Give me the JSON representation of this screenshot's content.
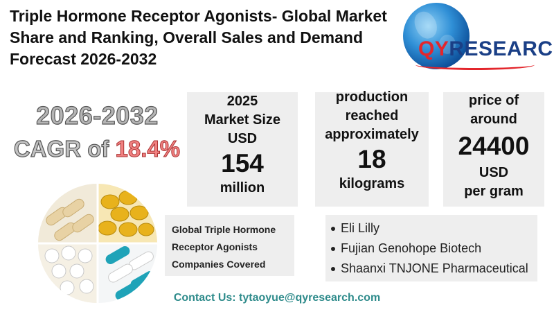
{
  "title": "Triple Hormone Receptor Agonists- Global Market Share and Ranking, Overall Sales and Demand Forecast 2026-2032",
  "logo": {
    "brand_qy": "QY",
    "brand_rest": "RESEARCH"
  },
  "cagr": {
    "years": "2026-2032",
    "label": "CAGR of ",
    "value": "18.4%"
  },
  "stats": [
    {
      "lines": [
        "2025",
        "Market Size",
        "USD"
      ],
      "value": "154",
      "unit": "million"
    },
    {
      "lines": [
        "production",
        "reached",
        "approximately"
      ],
      "value": "18",
      "unit": "kilograms"
    },
    {
      "lines": [
        "price of",
        "around"
      ],
      "value": "24400",
      "unit_lines": [
        "USD",
        "per gram"
      ]
    }
  ],
  "companies": {
    "heading_lines": [
      "Global Triple Hormone",
      "Receptor Agonists",
      "Companies Covered"
    ],
    "items": [
      "Eli Lilly",
      "Fujian Genohope Biotech",
      "Shaanxi TNJONE Pharmaceutical"
    ]
  },
  "contact": "Contact Us: tytaoyue@qyresearch.com",
  "colors": {
    "contact": "#2e8b8b",
    "cagr_value": "#f08080",
    "logo_red": "#e3262c",
    "logo_blue": "#1a3f86",
    "box_bg": "#eeeeee"
  },
  "icons": [
    "globe-logo",
    "pills-image"
  ]
}
